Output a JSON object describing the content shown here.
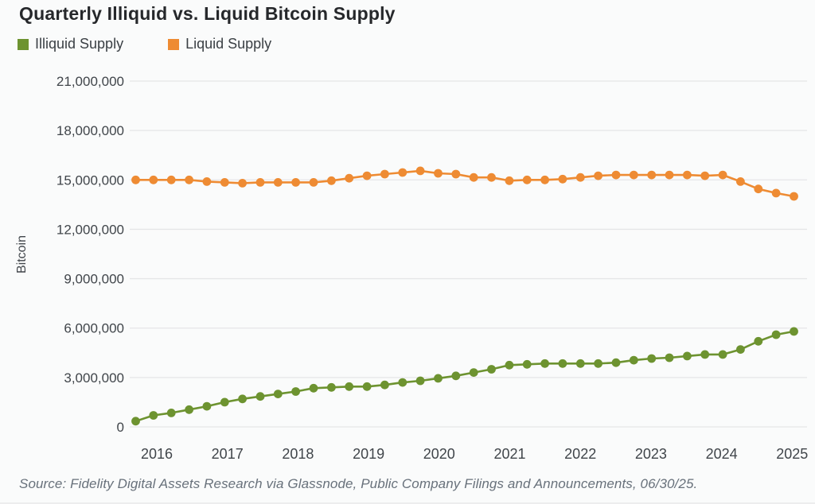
{
  "title": "Quarterly Illiquid vs. Liquid Bitcoin Supply",
  "legend": {
    "items": [
      {
        "label": "Illiquid Supply",
        "color": "#6d9330"
      },
      {
        "label": "Liquid Supply",
        "color": "#ee8b33"
      }
    ]
  },
  "source_note": "Source: Fidelity Digital Assets Research via Glassnode, Public Company Filings and Announcements, 06/30/25.",
  "colors": {
    "background": "#fafbfb",
    "gridline": "#e5e6e7",
    "axis_text": "#40454a",
    "title_text": "#26282b",
    "source_text": "#68717b",
    "illiquid_green": "#6d9330",
    "liquid_orange": "#ee8b33"
  },
  "chart_data": {
    "type": "line",
    "title": "Quarterly Illiquid vs. Liquid Bitcoin Supply",
    "xlabel": "",
    "ylabel": "Bitcoin",
    "ylim": [
      0,
      21000000
    ],
    "y_ticks": [
      0,
      3000000,
      6000000,
      9000000,
      12000000,
      15000000,
      18000000,
      21000000
    ],
    "y_tick_labels": [
      "0",
      "3,000,000",
      "6,000,000",
      "9,000,000",
      "12,000,000",
      "15,000,000",
      "18,000,000",
      "21,000,000"
    ],
    "x_tick_labels": [
      "2016",
      "2017",
      "2018",
      "2019",
      "2020",
      "2021",
      "2022",
      "2023",
      "2024",
      "2025"
    ],
    "grid": "horizontal",
    "legend_position": "top-left",
    "frequency": "quarterly",
    "x": [
      "2016-Q1",
      "2016-Q2",
      "2016-Q3",
      "2016-Q4",
      "2017-Q1",
      "2017-Q2",
      "2017-Q3",
      "2017-Q4",
      "2018-Q1",
      "2018-Q2",
      "2018-Q3",
      "2018-Q4",
      "2019-Q1",
      "2019-Q2",
      "2019-Q3",
      "2019-Q4",
      "2020-Q1",
      "2020-Q2",
      "2020-Q3",
      "2020-Q4",
      "2021-Q1",
      "2021-Q2",
      "2021-Q3",
      "2021-Q4",
      "2022-Q1",
      "2022-Q2",
      "2022-Q3",
      "2022-Q4",
      "2023-Q1",
      "2023-Q2",
      "2023-Q3",
      "2023-Q4",
      "2024-Q1",
      "2024-Q2",
      "2024-Q3",
      "2024-Q4",
      "2025-Q1",
      "2025-Q2"
    ],
    "series": [
      {
        "name": "Illiquid Supply",
        "color": "#6d9330",
        "values": [
          350000,
          700000,
          850000,
          1050000,
          1250000,
          1500000,
          1700000,
          1850000,
          2000000,
          2150000,
          2350000,
          2400000,
          2450000,
          2450000,
          2550000,
          2700000,
          2800000,
          2950000,
          3100000,
          3300000,
          3500000,
          3750000,
          3800000,
          3850000,
          3850000,
          3850000,
          3850000,
          3900000,
          4050000,
          4150000,
          4200000,
          4300000,
          4400000,
          4400000,
          4700000,
          5200000,
          5600000,
          5800000
        ]
      },
      {
        "name": "Liquid Supply",
        "color": "#ee8b33",
        "values": [
          15000000,
          15000000,
          15000000,
          15000000,
          14900000,
          14850000,
          14800000,
          14850000,
          14850000,
          14850000,
          14850000,
          14950000,
          15100000,
          15250000,
          15350000,
          15450000,
          15550000,
          15400000,
          15350000,
          15150000,
          15150000,
          14950000,
          15000000,
          15000000,
          15050000,
          15150000,
          15250000,
          15300000,
          15300000,
          15300000,
          15300000,
          15300000,
          15250000,
          15300000,
          14900000,
          14450000,
          14200000,
          14000000
        ]
      }
    ]
  }
}
